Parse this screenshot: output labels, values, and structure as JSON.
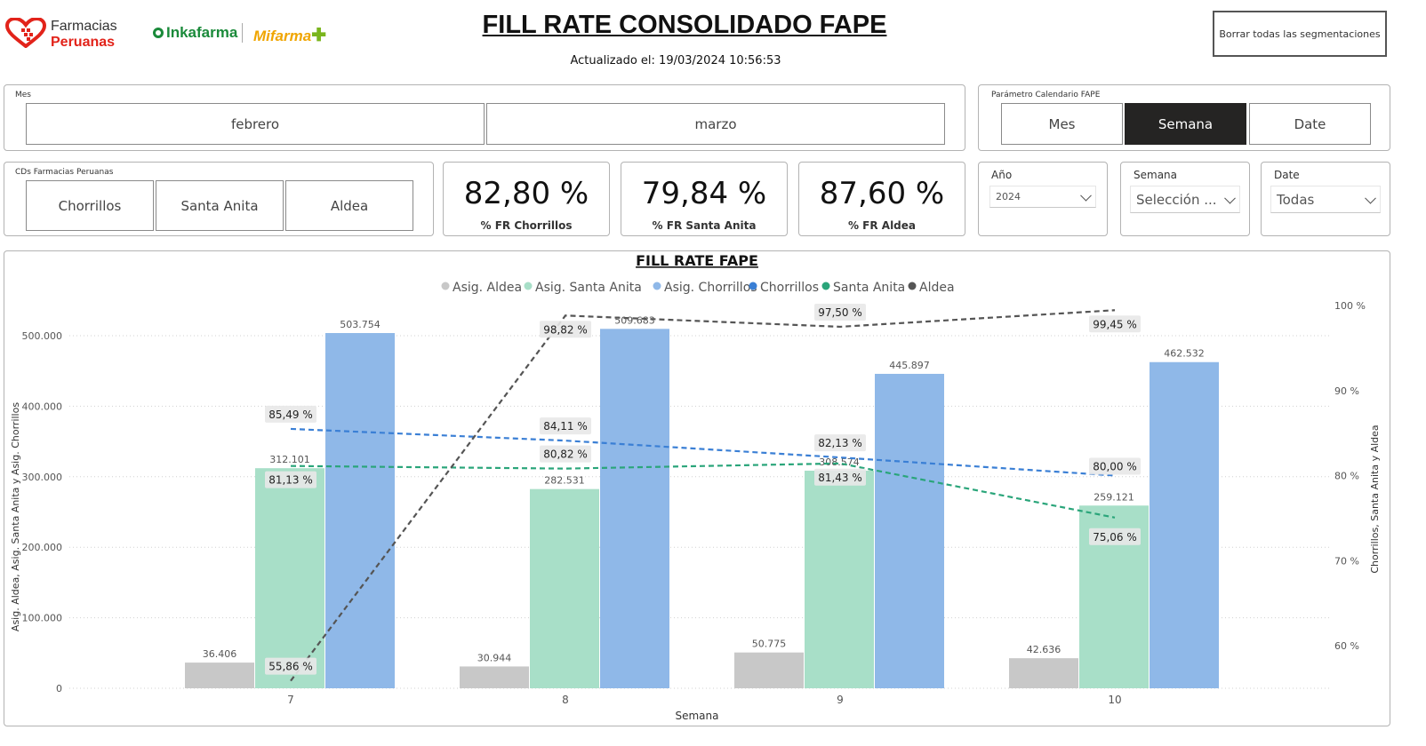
{
  "header": {
    "brand1_line1": "Farmacias",
    "brand1_line2": "Peruanas",
    "brand2": "Inkafarma",
    "brand3": "Mifarma",
    "title": "FILL RATE CONSOLIDADO FAPE",
    "updated": "Actualizado el: 19/03/2024 10:56:53",
    "clear_button": "Borrar todas las segmentaciones"
  },
  "slicer_mes": {
    "title": "Mes",
    "items": [
      {
        "label": "febrero"
      },
      {
        "label": "marzo"
      }
    ]
  },
  "slicer_param": {
    "title": "Parámetro Calendario FAPE",
    "items": [
      {
        "label": "Mes"
      },
      {
        "label": "Semana",
        "selected": true
      },
      {
        "label": "Date"
      }
    ]
  },
  "slicer_cds": {
    "title": "CDs Farmacias Peruanas",
    "items": [
      {
        "label": "Chorrillos"
      },
      {
        "label": "Santa Anita"
      },
      {
        "label": "Aldea"
      }
    ]
  },
  "kpis": [
    {
      "value": "82,80 %",
      "label": "% FR Chorrillos"
    },
    {
      "value": "79,84 %",
      "label": "% FR Santa Anita"
    },
    {
      "value": "87,60 %",
      "label": "% FR Aldea"
    }
  ],
  "filters": {
    "anio": {
      "label": "Año",
      "value": "2024"
    },
    "semana": {
      "label": "Semana",
      "value": "Selección ..."
    },
    "date": {
      "label": "Date",
      "value": "Todas"
    }
  },
  "colors": {
    "asig_aldea": "#c8c8c8",
    "asig_santa_anita": "#a8dfc8",
    "asig_chorrillos": "#8fb8e8",
    "chorrillos": "#3a7fd5",
    "santa_anita": "#2aa57a",
    "aldea": "#555555"
  },
  "chart_data": {
    "type": "bar",
    "title": "FILL RATE FAPE",
    "xlabel": "Semana",
    "ylabel": "Asig. Aldea, Asig. Santa Anita y Asig. Chorrillos",
    "y2label": "Chorrillos, Santa Anita y Aldea",
    "categories": [
      "7",
      "8",
      "9",
      "10"
    ],
    "ylim": [
      0,
      500000
    ],
    "yticks": [
      "0",
      "100.000",
      "200.000",
      "300.000",
      "400.000",
      "500.000"
    ],
    "y2lim": [
      55,
      100
    ],
    "y2ticks": [
      "60 %",
      "70 %",
      "80 %",
      "90 %",
      "100 %"
    ],
    "legend_position": "top-center",
    "series": [
      {
        "name": "Asig. Aldea",
        "kind": "bar",
        "values": [
          36406,
          30944,
          50775,
          42636
        ],
        "labels": [
          "36.406",
          "30.944",
          "50.775",
          "42.636"
        ]
      },
      {
        "name": "Asig. Santa Anita",
        "kind": "bar",
        "values": [
          312101,
          282531,
          308574,
          259121
        ],
        "labels": [
          "312.101",
          "282.531",
          "308.574",
          "259.121"
        ]
      },
      {
        "name": "Asig. Chorrillos",
        "kind": "bar",
        "values": [
          503754,
          509683,
          445897,
          462532
        ],
        "labels": [
          "503.754",
          "509.683",
          "445.897",
          "462.532"
        ]
      },
      {
        "name": "Chorrillos",
        "kind": "line",
        "values": [
          85.49,
          84.11,
          82.13,
          80.0
        ],
        "labels": [
          "85,49 %",
          "84,11 %",
          "82,13 %",
          "80,00 %"
        ]
      },
      {
        "name": "Santa Anita",
        "kind": "line",
        "values": [
          81.13,
          80.82,
          81.43,
          75.06
        ],
        "labels": [
          "81,13 %",
          "80,82 %",
          "81,43 %",
          "75,06 %"
        ]
      },
      {
        "name": "Aldea",
        "kind": "line",
        "values": [
          55.86,
          98.82,
          97.5,
          99.45
        ],
        "labels": [
          "55,86 %",
          "98,82 %",
          "97,50 %",
          "99,45 %"
        ]
      }
    ]
  }
}
